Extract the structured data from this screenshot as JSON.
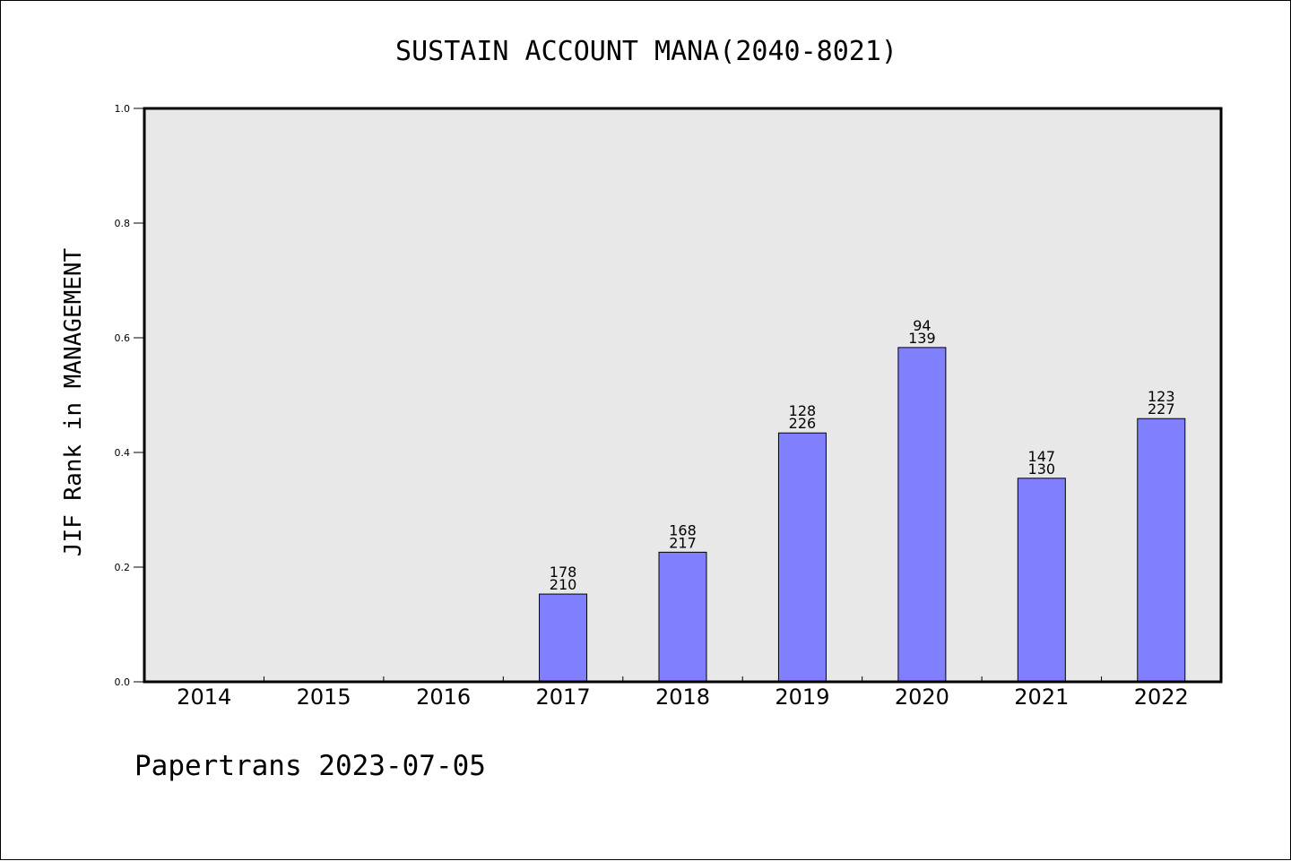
{
  "chart_data": {
    "type": "bar",
    "title": "SUSTAIN ACCOUNT MANA(2040-8021)",
    "xlabel": "",
    "ylabel": "JIF Rank in MANAGEMENT",
    "ylim": [
      0,
      1.0
    ],
    "yticks": [
      "0.0",
      "0.2",
      "0.4",
      "0.6",
      "0.8",
      "1.0"
    ],
    "grid": false,
    "categories": [
      "2014",
      "2015",
      "2016",
      "2017",
      "2018",
      "2019",
      "2020",
      "2021",
      "2022"
    ],
    "values": [
      null,
      null,
      null,
      0.153,
      0.226,
      0.434,
      0.583,
      0.355,
      0.459
    ],
    "labels_top": [
      "",
      "",
      "",
      "178",
      "168",
      "128",
      "94",
      "147",
      "123"
    ],
    "labels_bottom": [
      "",
      "",
      "",
      "210",
      "217",
      "226",
      "139",
      "130",
      "227"
    ],
    "colors": {
      "bar": "#8080ff",
      "plot_bg": "#e8e8e8"
    }
  },
  "footer": "Papertrans 2023-07-05"
}
